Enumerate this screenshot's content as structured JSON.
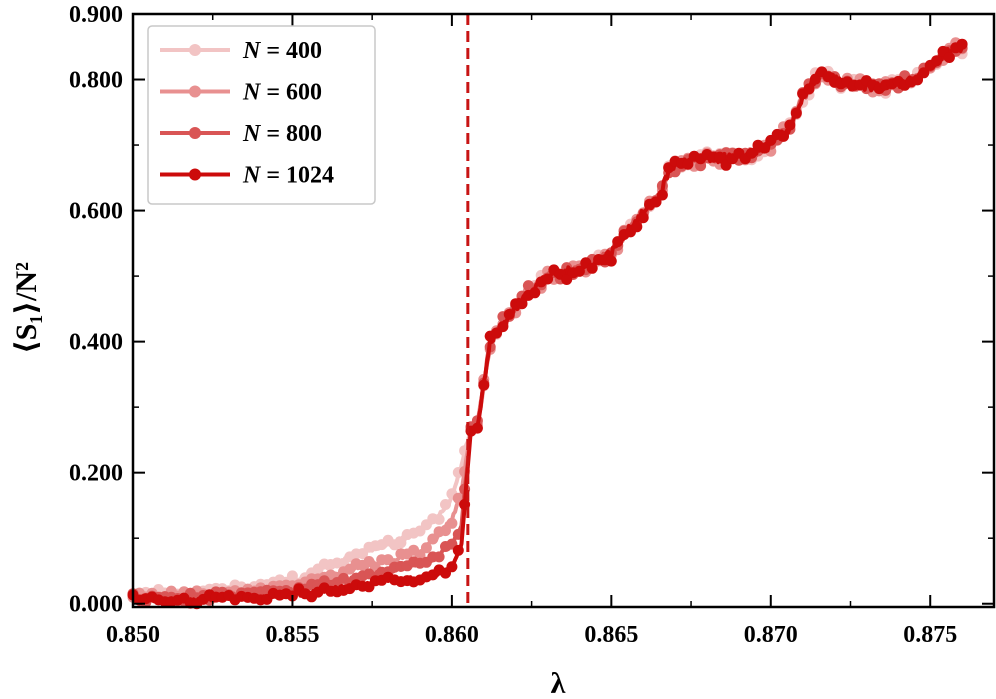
{
  "chart_data": {
    "type": "line",
    "xlabel": "λ",
    "ylabel": "⟨S₁⟩/N²",
    "xlim": [
      0.85,
      0.877
    ],
    "ylim": [
      -0.005,
      0.9
    ],
    "xticks": [
      "0.850",
      "0.855",
      "0.860",
      "0.865",
      "0.870",
      "0.875"
    ],
    "yticks": [
      "0.000",
      "0.200",
      "0.400",
      "0.600",
      "0.800",
      "0.900"
    ],
    "grid": false,
    "legend_position": "top-left",
    "critical_line": {
      "x": 0.8605,
      "style": "dashed",
      "color": "#c81414"
    },
    "shared_curve": {
      "x": [
        0.85,
        0.855,
        0.8575,
        0.859,
        0.86,
        0.8605,
        0.8608,
        0.8612,
        0.8618,
        0.8625,
        0.863,
        0.8635,
        0.864,
        0.8645,
        0.865,
        0.8655,
        0.8665,
        0.8668,
        0.867,
        0.868,
        0.869,
        0.87,
        0.8705,
        0.871,
        0.8715,
        0.872,
        0.8725,
        0.8735,
        0.8745,
        0.875,
        0.8755,
        0.876
      ],
      "y": [
        null,
        null,
        null,
        null,
        null,
        null,
        0.27,
        0.4,
        0.44,
        0.48,
        0.5,
        0.505,
        0.51,
        0.52,
        0.535,
        0.57,
        0.62,
        0.66,
        0.67,
        0.68,
        0.68,
        0.7,
        0.72,
        0.77,
        0.81,
        0.8,
        0.79,
        0.79,
        0.8,
        0.82,
        0.84,
        0.85
      ]
    },
    "series": [
      {
        "name": "N = 400",
        "color": "#f2c4c4",
        "x": [
          0.85,
          0.852,
          0.854,
          0.855,
          0.856,
          0.857,
          0.858,
          0.859,
          0.8595,
          0.86,
          0.8603,
          0.8606
        ],
        "y": [
          0.016,
          0.017,
          0.025,
          0.035,
          0.055,
          0.075,
          0.09,
          0.11,
          0.13,
          0.16,
          0.21,
          0.27
        ]
      },
      {
        "name": "N = 600",
        "color": "#e89090",
        "x": [
          0.85,
          0.852,
          0.854,
          0.855,
          0.856,
          0.857,
          0.858,
          0.859,
          0.8595,
          0.86,
          0.8603,
          0.8606
        ],
        "y": [
          0.012,
          0.013,
          0.02,
          0.027,
          0.04,
          0.055,
          0.065,
          0.08,
          0.1,
          0.13,
          0.17,
          0.27
        ]
      },
      {
        "name": "N = 800",
        "color": "#d95555",
        "x": [
          0.85,
          0.852,
          0.854,
          0.855,
          0.856,
          0.857,
          0.858,
          0.859,
          0.8595,
          0.86,
          0.8603,
          0.8606
        ],
        "y": [
          0.009,
          0.01,
          0.015,
          0.02,
          0.03,
          0.04,
          0.05,
          0.06,
          0.07,
          0.09,
          0.12,
          0.27
        ]
      },
      {
        "name": "N = 1024",
        "color": "#cc0b0b",
        "x": [
          0.85,
          0.852,
          0.854,
          0.855,
          0.856,
          0.857,
          0.858,
          0.859,
          0.8595,
          0.86,
          0.8603,
          0.8606
        ],
        "y": [
          0.006,
          0.007,
          0.01,
          0.013,
          0.02,
          0.028,
          0.035,
          0.04,
          0.045,
          0.055,
          0.09,
          0.27
        ]
      }
    ]
  }
}
